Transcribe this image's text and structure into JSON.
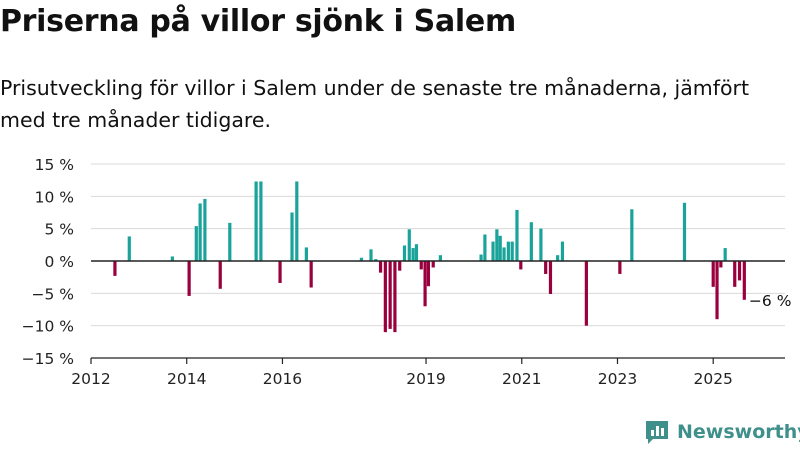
{
  "header": {
    "title": "Priserna på villor sjönk i Salem",
    "subtitle": "Prisutveckling för villor i Salem under de senaste tre månaderna, jämfört med tre månader tidigare."
  },
  "brand": {
    "name": "Newsworthy",
    "logo_icon": "newsworthy-logo-icon",
    "color": "#3f8f8b"
  },
  "chart_data": {
    "type": "bar",
    "title": "",
    "xlabel": "",
    "ylabel": "",
    "ylim": [
      -15,
      15
    ],
    "xlim": [
      2012.0,
      2026.5
    ],
    "y_ticks": [
      {
        "value": 15,
        "label": "15 %"
      },
      {
        "value": 10,
        "label": "10 %"
      },
      {
        "value": 5,
        "label": "5 %"
      },
      {
        "value": 0,
        "label": "0 %"
      },
      {
        "value": -5,
        "label": "−5 %"
      },
      {
        "value": -10,
        "label": "−10 %"
      },
      {
        "value": -15,
        "label": "−15 %"
      }
    ],
    "x_ticks": [
      "2012",
      "2014",
      "2016",
      "2019",
      "2021",
      "2023",
      "2025"
    ],
    "grid": true,
    "legend": "none",
    "colors": {
      "positive": "#1aa39a",
      "negative": "#99003d",
      "zero_line": "#222222",
      "grid": "#d9d9d9"
    },
    "annotation": {
      "text": "−6 %",
      "x": 2025.6,
      "y": -6
    },
    "x": [
      2012.5,
      2012.8,
      2013.7,
      2014.05,
      2014.2,
      2014.28,
      2014.38,
      2014.7,
      2014.9,
      2015.45,
      2015.55,
      2015.95,
      2016.2,
      2016.3,
      2016.5,
      2016.6,
      2017.65,
      2017.85,
      2017.95,
      2018.05,
      2018.15,
      2018.25,
      2018.35,
      2018.45,
      2018.55,
      2018.65,
      2018.73,
      2018.8,
      2018.9,
      2018.98,
      2019.05,
      2019.15,
      2019.3,
      2020.15,
      2020.23,
      2020.4,
      2020.48,
      2020.55,
      2020.63,
      2020.72,
      2020.8,
      2020.9,
      2020.98,
      2021.2,
      2021.4,
      2021.5,
      2021.6,
      2021.75,
      2021.85,
      2022.35,
      2023.05,
      2023.3,
      2024.4,
      2025.0,
      2025.08,
      2025.16,
      2025.25,
      2025.45,
      2025.55,
      2025.65
    ],
    "values": [
      -2.3,
      3.8,
      0.7,
      -5.4,
      5.4,
      8.9,
      9.6,
      -4.3,
      5.9,
      12.3,
      12.3,
      -3.4,
      7.5,
      12.3,
      2.1,
      -4.1,
      0.5,
      1.8,
      0.3,
      -1.8,
      -11.0,
      -10.5,
      -11.0,
      -1.5,
      2.4,
      4.9,
      2.0,
      2.6,
      -1.3,
      -7.0,
      -3.9,
      -1.0,
      0.9,
      1.0,
      4.1,
      3.0,
      4.9,
      3.9,
      2.1,
      3.0,
      3.0,
      7.9,
      -1.3,
      6.0,
      5.0,
      -2.0,
      -5.1,
      0.9,
      3.0,
      -10.0,
      -2.0,
      8.0,
      9.0,
      -4.0,
      -9.0,
      -1.0,
      2.0,
      -4.0,
      -3.0,
      -6.0
    ]
  }
}
